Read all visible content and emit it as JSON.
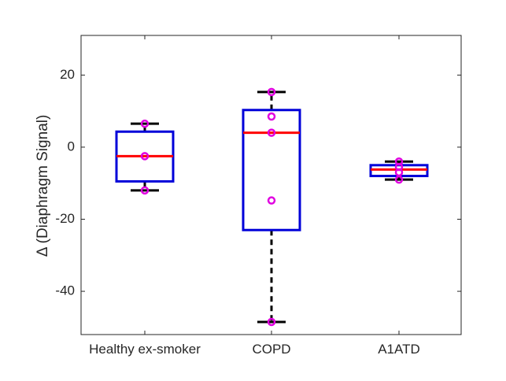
{
  "chart_data": {
    "type": "box",
    "title": "",
    "xlabel": "",
    "ylabel": "Δ (Diaphragm Signal)",
    "ylim": [
      -52,
      31
    ],
    "yticks": [
      -40,
      -20,
      0,
      20
    ],
    "ytick_labels": [
      "-40",
      "-20",
      "0",
      "20"
    ],
    "grid": false,
    "categories": [
      "Healthy ex-smoker",
      "COPD",
      "A1ATD"
    ],
    "boxes": [
      {
        "name": "Healthy ex-smoker",
        "whisker_low": -12,
        "q1": -9.5,
        "median": -2.5,
        "q3": 4.3,
        "whisker_high": 6.5
      },
      {
        "name": "COPD",
        "whisker_low": -48.5,
        "q1": -23,
        "median": 4,
        "q3": 10.3,
        "whisker_high": 15.3
      },
      {
        "name": "A1ATD",
        "whisker_low": -9,
        "q1": -8,
        "median": -6.2,
        "q3": -5,
        "whisker_high": -4
      }
    ],
    "points": [
      {
        "category": "Healthy ex-smoker",
        "values": [
          6.5,
          -2.5,
          -12
        ]
      },
      {
        "category": "COPD",
        "values": [
          15.3,
          8.5,
          4,
          -14.8,
          -48.5
        ]
      },
      {
        "category": "A1ATD",
        "values": [
          -4,
          -5.5,
          -7,
          -9
        ]
      }
    ],
    "colors": {
      "box": "#0000d9",
      "median": "#ff0000",
      "whisker": "#000000",
      "points": "#e000e0",
      "axis": "#262626"
    }
  }
}
